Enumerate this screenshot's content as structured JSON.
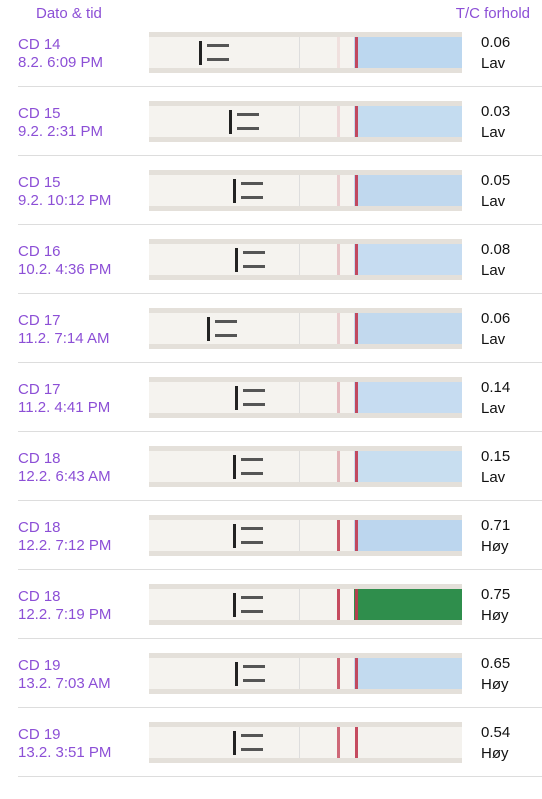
{
  "header": {
    "left": "Dato & tid",
    "right": "T/C forhold"
  },
  "rows": [
    {
      "cycle_day": "CD 14",
      "time": "8.2. 6:09 PM",
      "ratio": "0.06",
      "level": "Lav"
    },
    {
      "cycle_day": "CD 15",
      "time": "9.2. 2:31 PM",
      "ratio": "0.03",
      "level": "Lav"
    },
    {
      "cycle_day": "CD 15",
      "time": "9.2. 10:12 PM",
      "ratio": "0.05",
      "level": "Lav"
    },
    {
      "cycle_day": "CD 16",
      "time": "10.2. 4:36 PM",
      "ratio": "0.08",
      "level": "Lav"
    },
    {
      "cycle_day": "CD 17",
      "time": "11.2. 7:14 AM",
      "ratio": "0.06",
      "level": "Lav"
    },
    {
      "cycle_day": "CD 17",
      "time": "11.2. 4:41 PM",
      "ratio": "0.14",
      "level": "Lav"
    },
    {
      "cycle_day": "CD 18",
      "time": "12.2. 6:43 AM",
      "ratio": "0.15",
      "level": "Lav"
    },
    {
      "cycle_day": "CD 18",
      "time": "12.2. 7:12 PM",
      "ratio": "0.71",
      "level": "Høy"
    },
    {
      "cycle_day": "CD 18",
      "time": "12.2. 7:19 PM",
      "ratio": "0.75",
      "level": "Høy"
    },
    {
      "cycle_day": "CD 19",
      "time": "13.2. 7:03 AM",
      "ratio": "0.65",
      "level": "Høy"
    },
    {
      "cycle_day": "CD 19",
      "time": "13.2. 3:51 PM",
      "ratio": "0.54",
      "level": "Høy"
    }
  ]
}
